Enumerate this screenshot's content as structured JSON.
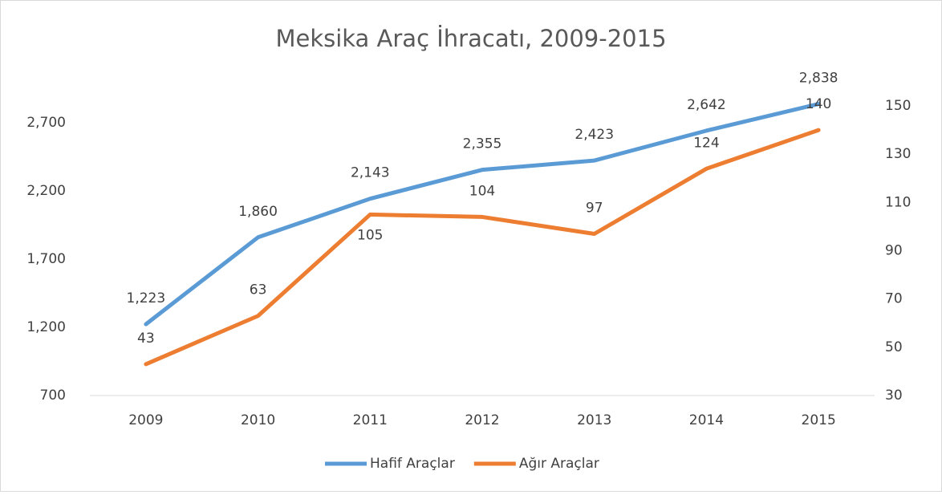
{
  "chart_data": {
    "type": "line",
    "title": "Meksika Araç İhracatı, 2009-2015",
    "categories": [
      "2009",
      "2010",
      "2011",
      "2012",
      "2013",
      "2014",
      "2015"
    ],
    "series": [
      {
        "name": "Hafif Araçlar",
        "color": "#5b9bd5",
        "values": [
          1223,
          1860,
          2143,
          2355,
          2423,
          2642,
          2838
        ],
        "value_labels": [
          "1,223",
          "1,860",
          "2,143",
          "2,355",
          "2,423",
          "2,642",
          "2,838"
        ]
      },
      {
        "name": "Ağır Araçlar",
        "color": "#ed7d31",
        "axis": "y2",
        "values": [
          43,
          63,
          105,
          104,
          97,
          124,
          140
        ]
      }
    ],
    "ylim": [
      700,
      3000
    ],
    "yticks": [
      {
        "value": 700,
        "label": "700"
      },
      {
        "value": 1200,
        "label": "1,200"
      },
      {
        "value": 1700,
        "label": "1,700"
      },
      {
        "value": 2200,
        "label": "2,200"
      },
      {
        "value": 2700,
        "label": "2,700"
      }
    ],
    "y2lim": [
      30,
      160
    ],
    "y2ticks": [
      30,
      50,
      70,
      90,
      110,
      130,
      150
    ],
    "legend": "bottom"
  }
}
